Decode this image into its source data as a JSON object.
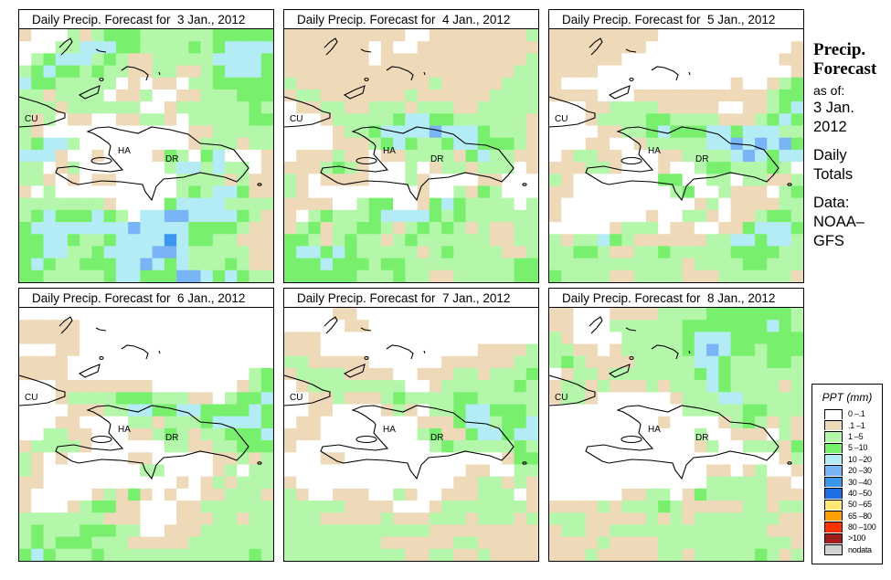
{
  "category_colors": [
    "#ffffff",
    "#eed9b9",
    "#b4f7aa",
    "#78f06e",
    "#b4ecf6",
    "#78b4f6",
    "#3c96f0",
    "#1e6ee6",
    "#ffe678",
    "#ffa000",
    "#ff3200",
    "#a01e1e",
    "#d2d2d2"
  ],
  "map_labels": {
    "cuba": "CU",
    "haiti": "HA",
    "dominican_republic": "DR"
  },
  "panels": [
    {
      "title": "Daily Precip. Forecast for  3 Jan., 2012",
      "grid": [
        "100021233322222233333",
        "000224443322223234444",
        "023444232112222244443",
        "234332322112211234443",
        "433222220101102233333",
        "221222201120011222333",
        "222122222200122222232",
        "212011001122102222233",
        "210000000000001122222",
        "234420000000001222122",
        "444100100001320340001",
        "220120000000244242201",
        "221010110000022221211",
        "102000000000023244311",
        "222222210000344442222",
        "234333432044554444321",
        "344444444544443333211",
        "334432234444643322111",
        "334422344445542222211",
        "343223334454342223211",
        "332222234433355434322"
      ]
    },
    {
      "title": "Daily Precip. Forecast for  4 Jan., 2012",
      "grid": [
        "111111111100111111112",
        "111111101001111111111",
        "111111101111111111112",
        "111111111111111111122",
        "211111111111211111222",
        "122111111121111112222",
        "011221122212221122222",
        "000122222344332222221",
        "000012234444544432221",
        "000011123432234433321",
        "011121101122221342211",
        "111232100020122122201",
        "210111100021000011000",
        "210000000001002132000",
        "111100233001343222202",
        "102322234444323222222",
        "123122332123232121122",
        "332123221232222221122",
        "344343222221232222112",
        "333433323322222222233",
        "333333222322112222233"
      ]
    },
    {
      "title": "Daily Precip. Forecast for  5 Jan., 2012",
      "grid": [
        "111111111000000000000",
        "111111110000000000001",
        "111111000000000000011",
        "111100000000000000001",
        "100000000000000100123",
        "111100011111111111233",
        "000112222111110011234",
        "000122223322221112343",
        "000011223433344344422",
        "000110012222244545453",
        "012211000112222454344",
        "111221000100233222320",
        "210000000330022022112",
        "110000000023002111023",
        "100000000000120111122",
        "100000001002210112332",
        "000001222011001134443",
        "212243211111122443442",
        "223321122322222333322",
        "222222222221222233222",
        "322221122221112222221"
      ]
    },
    {
      "title": "Daily Precip. Forecast for  6 Jan., 2012",
      "grid": [
        "000000000000000000000",
        "111110000000000000000",
        "111110000000000000000",
        "000110000000000000000",
        "111100000000000000000",
        "111100000000000000023",
        "000111111110000000123",
        "000122223332221102334",
        "000011122443344333343",
        "000110000221222344443",
        "002211000112321223334",
        "122221000000221122333",
        "210100000110000011212",
        "210000000022000012022",
        "110000000000010121222",
        "100000121310100112221",
        "100012331100011222222",
        "222222211100011122122",
        "232223332200111222222",
        "232333222111112222222",
        "343222322222222222232"
      ]
    },
    {
      "title": "Daily Precip. Forecast for  7 Jan., 2012",
      "grid": [
        "000011000000000000000",
        "000001100000000000000",
        "111000000000000000000",
        "111000000000000011112",
        "221111100000011111122",
        "122221111001112212223",
        "012222222200122222232",
        "001121112322223322222",
        "001100001210223443332",
        "011000000001113442334",
        "111000000002311344344",
        "100000000000232222232",
        "000110000000000000133",
        "000000000000000110022",
        "100000000000001122121",
        "210011100210011122201",
        "222221111000122222221",
        "222111112111222122212",
        "222222222222111111111",
        "222222221111112211111",
        "222222222211221121111"
      ]
    },
    {
      "title": "Daily Precip. Forecast for  8 Jan., 2012",
      "grid": [
        "110001111222233333332",
        "110002222223333333432",
        "210000222223444333333",
        "221101222223454332333",
        "232111122222443222332",
        "012212222222343222222",
        "122121112122243222212",
        "122100000012224422222",
        "000000000002222233222",
        "000000000100001232121",
        "000000000000200111021",
        "000000000000120022213",
        "000000000000000000012",
        "000000000000011012001",
        "000000000000022222110",
        "000000112201322222111",
        "111121222321111122122",
        "222111112121222222211",
        "122112222222222222111",
        "111121111222222222221",
        "111211111221222223212"
      ]
    }
  ],
  "sidebar": {
    "title_line1": "Precip.",
    "title_line2": "Forecast",
    "as_of_label": "as of:",
    "date_line1": "3 Jan.",
    "date_line2": "2012",
    "type_line1": "Daily",
    "type_line2": "Totals",
    "source_line1": "Data:",
    "source_line2": "NOAA–",
    "source_line3": "GFS"
  },
  "legend": {
    "title": "PPT (mm)",
    "items": [
      {
        "label": "0 –.1",
        "color": "#ffffff"
      },
      {
        "label": ".1 –1",
        "color": "#eed9b9"
      },
      {
        "label": "1 –5",
        "color": "#b4f7aa"
      },
      {
        "label": "5 –10",
        "color": "#78f06e"
      },
      {
        "label": "10 –20",
        "color": "#b4ecf6"
      },
      {
        "label": "20 –30",
        "color": "#78b4f6"
      },
      {
        "label": "30 –40",
        "color": "#3c96f0"
      },
      {
        "label": "40 –50",
        "color": "#1e6ee6"
      },
      {
        "label": "50 –65",
        "color": "#ffe678"
      },
      {
        "label": "65 –80",
        "color": "#ffa000"
      },
      {
        "label": "80 –100",
        "color": "#ff3200"
      },
      {
        "label": ">100",
        "color": "#a01e1e"
      },
      {
        "label": "nodata",
        "color": "#d2d2d2"
      }
    ]
  }
}
